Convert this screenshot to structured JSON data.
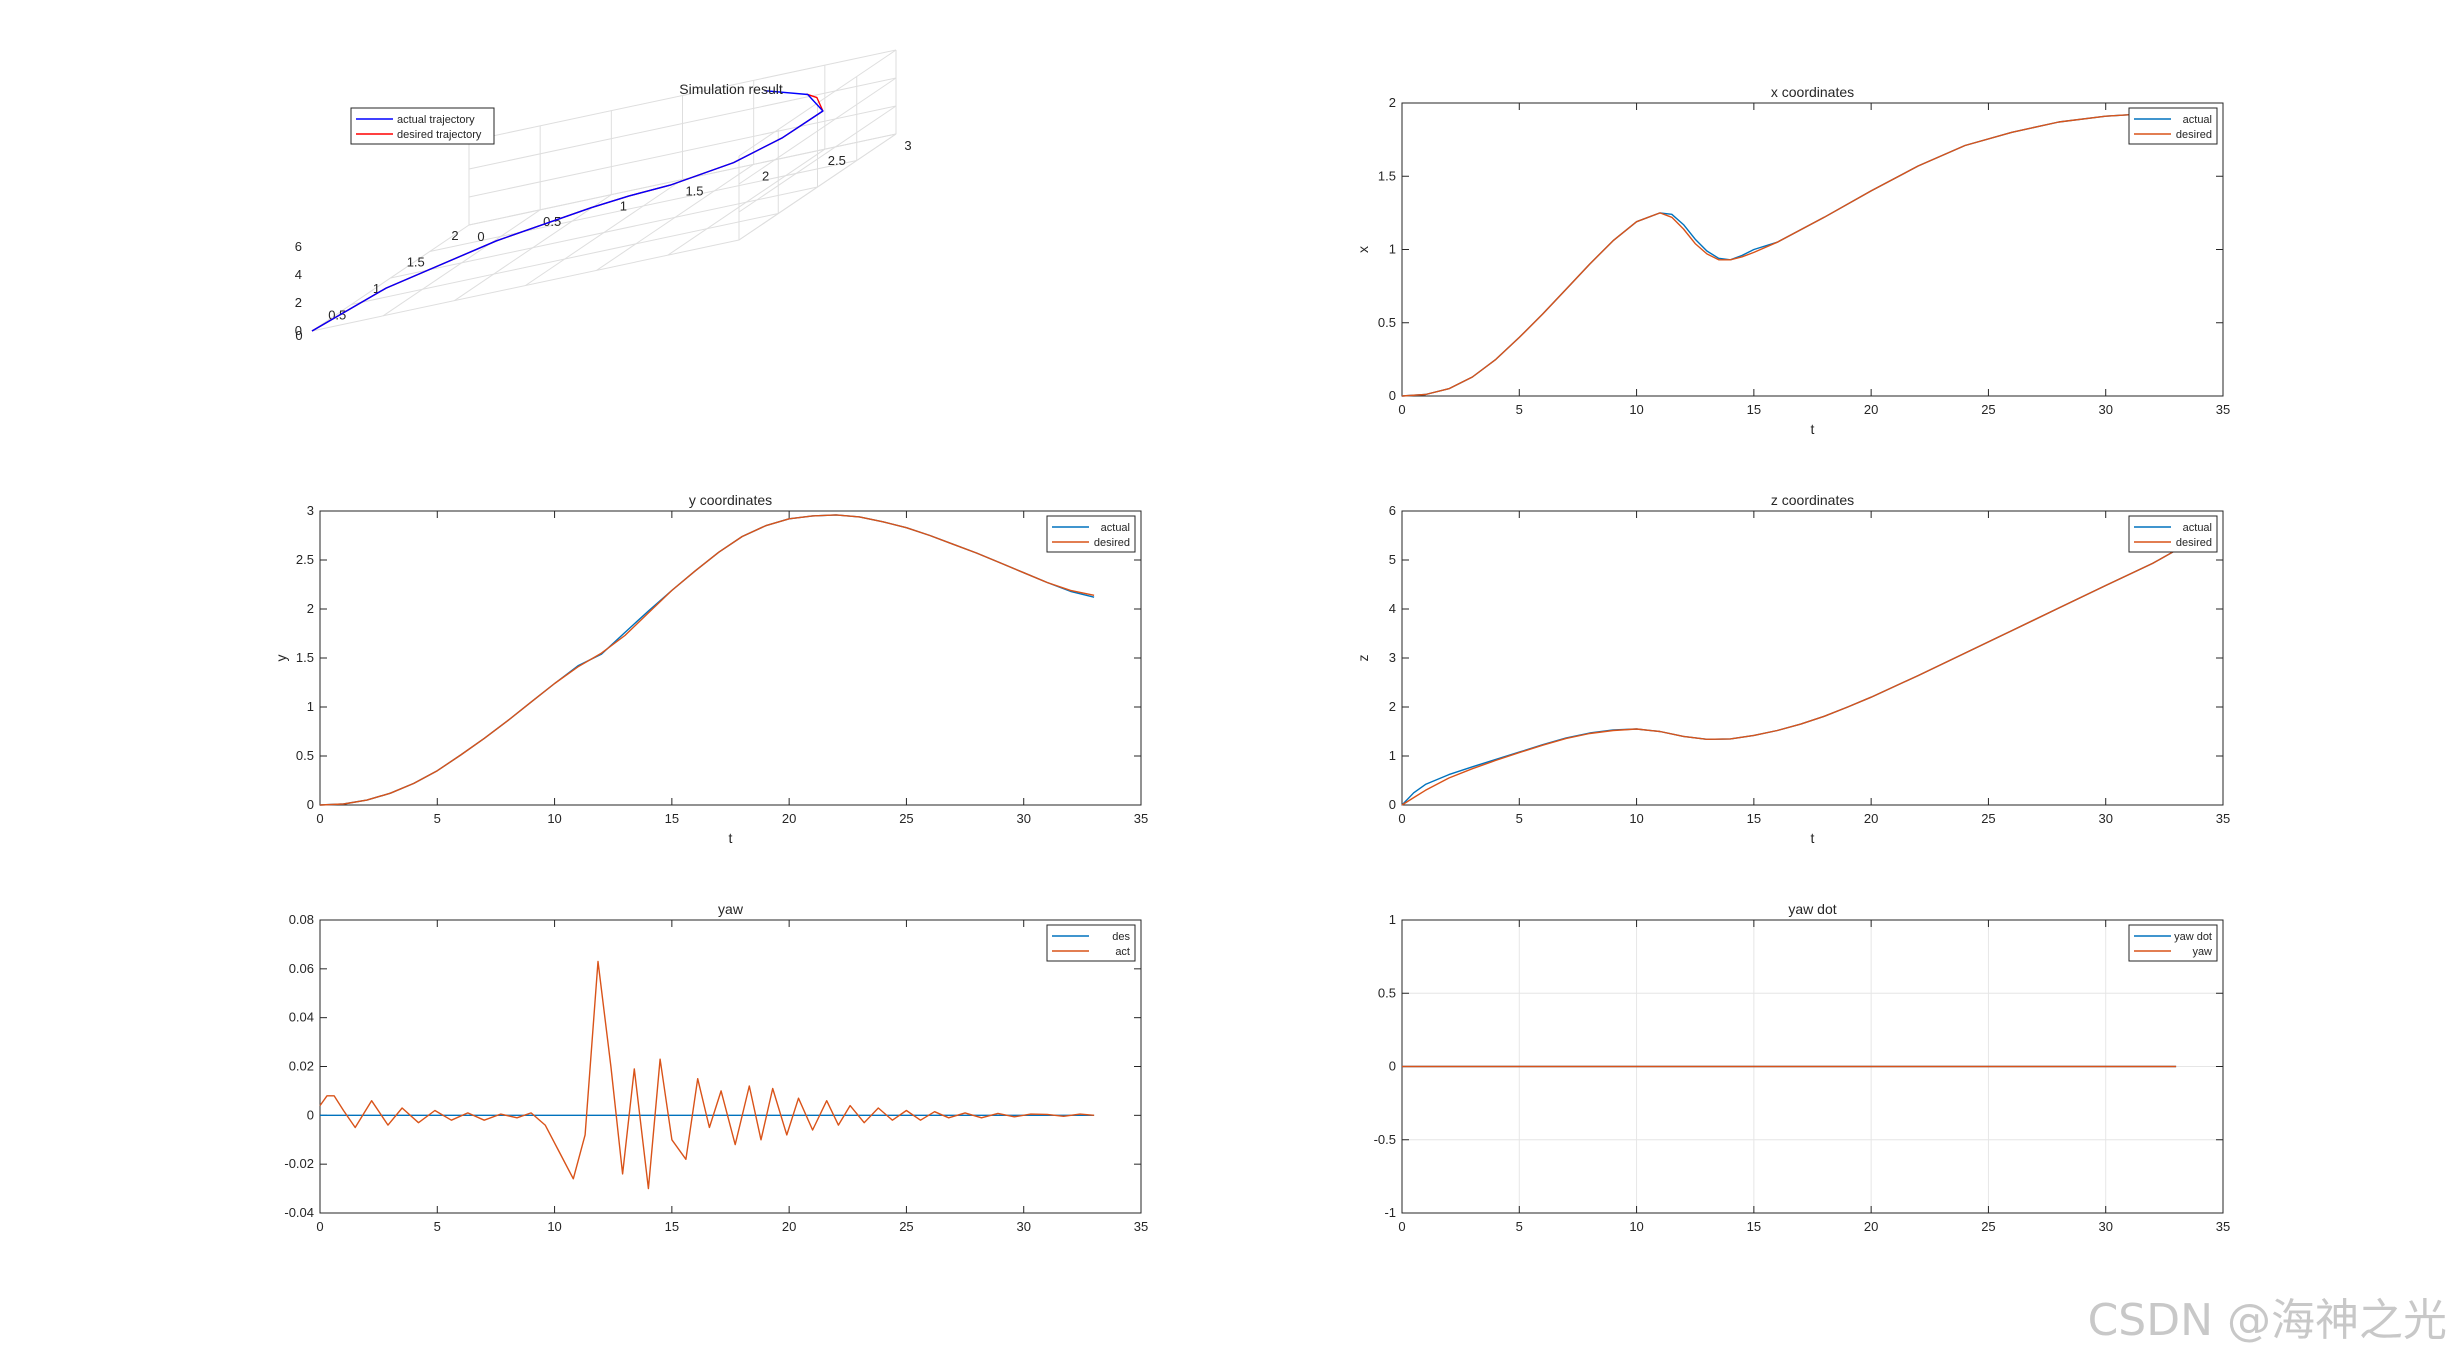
{
  "figure": {
    "watermark": "CSDN @海神之光"
  },
  "chart_data": [
    {
      "id": "sim3d",
      "type": "line3d",
      "title": "Simulation result",
      "xlim": [
        0,
        2
      ],
      "ylim": [
        0,
        3
      ],
      "zlim": [
        0,
        6
      ],
      "xticks": [
        0.5,
        1,
        1.5,
        2
      ],
      "xtick_labels": [
        "0.5",
        "1",
        "1.5",
        "2"
      ],
      "yticks": [
        0,
        0.5,
        1,
        1.5,
        2,
        2.5,
        3
      ],
      "ytick_labels": [
        "0",
        "0.5",
        "1",
        "1.5",
        "2",
        "2.5",
        "3"
      ],
      "zticks": [
        0,
        2,
        4,
        6
      ],
      "ztick_labels": [
        "0",
        "2",
        "4",
        "6"
      ],
      "origin_x_label": "0",
      "legend": {
        "location": "top-left",
        "entries": [
          "actual trajectory",
          "desired trajectory"
        ]
      },
      "series": [
        {
          "name": "actual trajectory",
          "color": "#0000ff",
          "points": [
            [
              0,
              0,
              0
            ],
            [
              0.4,
              0.3,
              0.9
            ],
            [
              0.9,
              0.8,
              1.3
            ],
            [
              1.2,
              1.3,
              1.45
            ],
            [
              1.32,
              1.5,
              1.4
            ],
            [
              1.3,
              1.8,
              1.6
            ],
            [
              1.2,
              2.3,
              2.5
            ],
            [
              1.1,
              2.7,
              3.8
            ],
            [
              1.25,
              2.9,
              4.7
            ],
            [
              1.6,
              2.6,
              5.2
            ],
            [
              1.92,
              2.12,
              5.3
            ]
          ]
        },
        {
          "name": "desired trajectory",
          "color": "#ff0000",
          "points": [
            [
              0,
              0,
              0
            ],
            [
              0.4,
              0.3,
              0.9
            ],
            [
              0.9,
              0.8,
              1.3
            ],
            [
              1.2,
              1.3,
              1.45
            ],
            [
              1.32,
              1.5,
              1.4
            ],
            [
              1.3,
              1.8,
              1.6
            ],
            [
              1.2,
              2.3,
              2.5
            ],
            [
              1.1,
              2.7,
              3.8
            ],
            [
              1.25,
              2.9,
              4.7
            ],
            [
              1.5,
              2.72,
              5.1
            ],
            [
              1.62,
              2.58,
              5.2
            ]
          ]
        }
      ]
    },
    {
      "id": "xcoord",
      "type": "line",
      "title": "x coordinates",
      "xlabel": "t",
      "ylabel": "x",
      "xlim": [
        0,
        35
      ],
      "ylim": [
        0,
        2
      ],
      "xticks": [
        0,
        5,
        10,
        15,
        20,
        25,
        30,
        35
      ],
      "xtick_labels": [
        "0",
        "5",
        "10",
        "15",
        "20",
        "25",
        "30",
        "35"
      ],
      "yticks": [
        0,
        0.5,
        1,
        1.5,
        2
      ],
      "ytick_labels": [
        "0",
        "0.5",
        "1",
        "1.5",
        "2"
      ],
      "grid": false,
      "legend": {
        "location": "top-right",
        "entries": [
          "actual",
          "desired"
        ]
      },
      "series": [
        {
          "name": "actual",
          "color": "#0072bd",
          "x": [
            0,
            1,
            2,
            3,
            4,
            5,
            6,
            7,
            8,
            9,
            10,
            11,
            11.5,
            12,
            12.5,
            13,
            13.5,
            14,
            14.5,
            15,
            16,
            18,
            20,
            22,
            24,
            26,
            28,
            30,
            32,
            33
          ],
          "y": [
            0,
            0.01,
            0.05,
            0.13,
            0.25,
            0.4,
            0.56,
            0.73,
            0.9,
            1.06,
            1.19,
            1.25,
            1.24,
            1.17,
            1.07,
            0.99,
            0.94,
            0.93,
            0.96,
            1.0,
            1.05,
            1.22,
            1.4,
            1.57,
            1.71,
            1.8,
            1.87,
            1.91,
            1.93,
            1.93
          ]
        },
        {
          "name": "desired",
          "color": "#d95319",
          "x": [
            0,
            1,
            2,
            3,
            4,
            5,
            6,
            7,
            8,
            9,
            10,
            11,
            11.5,
            12,
            12.5,
            13,
            13.5,
            14,
            14.5,
            15,
            16,
            18,
            20,
            22,
            24,
            26,
            28,
            30,
            32,
            33
          ],
          "y": [
            0,
            0.01,
            0.05,
            0.13,
            0.25,
            0.4,
            0.56,
            0.73,
            0.9,
            1.06,
            1.19,
            1.25,
            1.22,
            1.14,
            1.04,
            0.97,
            0.93,
            0.93,
            0.95,
            0.98,
            1.05,
            1.22,
            1.4,
            1.57,
            1.71,
            1.8,
            1.87,
            1.91,
            1.93,
            1.93
          ]
        }
      ]
    },
    {
      "id": "ycoord",
      "type": "line",
      "title": "y coordinates",
      "xlabel": "t",
      "ylabel": "y",
      "xlim": [
        0,
        35
      ],
      "ylim": [
        0,
        3
      ],
      "xticks": [
        0,
        5,
        10,
        15,
        20,
        25,
        30,
        35
      ],
      "xtick_labels": [
        "0",
        "5",
        "10",
        "15",
        "20",
        "25",
        "30",
        "35"
      ],
      "yticks": [
        0,
        0.5,
        1,
        1.5,
        2,
        2.5,
        3
      ],
      "ytick_labels": [
        "0",
        "0.5",
        "1",
        "1.5",
        "2",
        "2.5",
        "3"
      ],
      "grid": false,
      "legend": {
        "location": "top-right",
        "entries": [
          "actual",
          "desired"
        ]
      },
      "series": [
        {
          "name": "actual",
          "color": "#0072bd",
          "x": [
            0,
            1,
            2,
            3,
            4,
            5,
            6,
            7,
            8,
            9,
            10,
            11,
            12,
            13,
            14,
            15,
            16,
            17,
            18,
            19,
            20,
            21,
            22,
            23,
            24,
            25,
            26,
            27,
            28,
            29,
            30,
            31,
            32,
            33
          ],
          "y": [
            0,
            0.01,
            0.05,
            0.12,
            0.22,
            0.35,
            0.51,
            0.68,
            0.86,
            1.05,
            1.24,
            1.42,
            1.54,
            1.76,
            1.98,
            2.19,
            2.39,
            2.58,
            2.74,
            2.85,
            2.92,
            2.95,
            2.96,
            2.94,
            2.89,
            2.83,
            2.75,
            2.66,
            2.57,
            2.47,
            2.37,
            2.27,
            2.18,
            2.12
          ]
        },
        {
          "name": "desired",
          "color": "#d95319",
          "x": [
            0,
            1,
            2,
            3,
            4,
            5,
            6,
            7,
            8,
            9,
            10,
            11,
            12,
            13,
            14,
            15,
            16,
            17,
            18,
            19,
            20,
            21,
            22,
            23,
            24,
            25,
            26,
            27,
            28,
            29,
            30,
            31,
            32,
            33
          ],
          "y": [
            0,
            0.01,
            0.05,
            0.12,
            0.22,
            0.35,
            0.51,
            0.68,
            0.86,
            1.05,
            1.24,
            1.41,
            1.55,
            1.73,
            1.96,
            2.19,
            2.39,
            2.58,
            2.74,
            2.85,
            2.92,
            2.95,
            2.96,
            2.94,
            2.89,
            2.83,
            2.75,
            2.66,
            2.57,
            2.47,
            2.37,
            2.27,
            2.19,
            2.14
          ]
        }
      ]
    },
    {
      "id": "zcoord",
      "type": "line",
      "title": "z coordinates",
      "xlabel": "t",
      "ylabel": "z",
      "xlim": [
        0,
        35
      ],
      "ylim": [
        0,
        6
      ],
      "xticks": [
        0,
        5,
        10,
        15,
        20,
        25,
        30,
        35
      ],
      "xtick_labels": [
        "0",
        "5",
        "10",
        "15",
        "20",
        "25",
        "30",
        "35"
      ],
      "yticks": [
        0,
        1,
        2,
        3,
        4,
        5,
        6
      ],
      "ytick_labels": [
        "0",
        "1",
        "2",
        "3",
        "4",
        "5",
        "6"
      ],
      "grid": false,
      "legend": {
        "location": "top-right",
        "entries": [
          "actual",
          "desired"
        ]
      },
      "series": [
        {
          "name": "actual",
          "color": "#0072bd",
          "x": [
            0,
            0.5,
            1,
            2,
            3,
            4,
            5,
            6,
            7,
            8,
            9,
            10,
            11,
            12,
            13,
            14,
            15,
            16,
            17,
            18,
            19,
            20,
            22,
            24,
            26,
            28,
            30,
            32,
            33
          ],
          "y": [
            0,
            0.25,
            0.42,
            0.62,
            0.78,
            0.93,
            1.08,
            1.23,
            1.37,
            1.47,
            1.53,
            1.55,
            1.5,
            1.4,
            1.34,
            1.35,
            1.42,
            1.52,
            1.65,
            1.81,
            2.0,
            2.2,
            2.64,
            3.1,
            3.56,
            4.02,
            4.48,
            4.93,
            5.2
          ]
        },
        {
          "name": "desired",
          "color": "#d95319",
          "x": [
            0,
            0.5,
            1,
            2,
            3,
            4,
            5,
            6,
            7,
            8,
            9,
            10,
            11,
            12,
            13,
            14,
            15,
            16,
            17,
            18,
            19,
            20,
            22,
            24,
            26,
            28,
            30,
            32,
            33
          ],
          "y": [
            0,
            0.15,
            0.3,
            0.55,
            0.74,
            0.91,
            1.07,
            1.22,
            1.36,
            1.46,
            1.52,
            1.55,
            1.5,
            1.4,
            1.34,
            1.35,
            1.42,
            1.52,
            1.65,
            1.81,
            2.0,
            2.2,
            2.64,
            3.1,
            3.56,
            4.02,
            4.48,
            4.93,
            5.2
          ]
        }
      ]
    },
    {
      "id": "yaw",
      "type": "line",
      "title": "yaw",
      "xlabel": "",
      "ylabel": "",
      "xlim": [
        0,
        35
      ],
      "ylim": [
        -0.04,
        0.08
      ],
      "xticks": [
        0,
        5,
        10,
        15,
        20,
        25,
        30,
        35
      ],
      "xtick_labels": [
        "0",
        "5",
        "10",
        "15",
        "20",
        "25",
        "30",
        "35"
      ],
      "yticks": [
        -0.04,
        -0.02,
        0,
        0.02,
        0.04,
        0.06,
        0.08
      ],
      "ytick_labels": [
        "-0.04",
        "-0.02",
        "0",
        "0.02",
        "0.04",
        "0.06",
        "0.08"
      ],
      "grid": false,
      "legend": {
        "location": "top-right",
        "entries": [
          "des",
          "act"
        ]
      },
      "series": [
        {
          "name": "des",
          "color": "#0072bd",
          "x": [
            0,
            33
          ],
          "y": [
            0,
            0
          ]
        },
        {
          "name": "act",
          "color": "#d95319",
          "x": [
            0,
            0.3,
            0.6,
            1.0,
            1.5,
            2.2,
            2.9,
            3.5,
            4.2,
            4.9,
            5.6,
            6.3,
            7.0,
            7.7,
            8.4,
            9.0,
            9.6,
            10.2,
            10.8,
            11.3,
            11.85,
            12.4,
            12.9,
            13.4,
            14.0,
            14.5,
            15.0,
            15.6,
            16.1,
            16.6,
            17.1,
            17.7,
            18.3,
            18.8,
            19.3,
            19.9,
            20.4,
            21.0,
            21.6,
            22.1,
            22.6,
            23.2,
            23.8,
            24.4,
            25.0,
            25.6,
            26.2,
            26.8,
            27.5,
            28.2,
            28.9,
            29.6,
            30.3,
            31.0,
            31.7,
            32.4,
            33.0
          ],
          "y": [
            0.004,
            0.008,
            0.008,
            0.002,
            -0.005,
            0.006,
            -0.004,
            0.003,
            -0.003,
            0.002,
            -0.002,
            0.001,
            -0.002,
            0.0005,
            -0.001,
            0.001,
            -0.004,
            -0.015,
            -0.026,
            -0.008,
            0.063,
            0.02,
            -0.024,
            0.019,
            -0.03,
            0.023,
            -0.01,
            -0.018,
            0.015,
            -0.005,
            0.01,
            -0.012,
            0.012,
            -0.01,
            0.011,
            -0.008,
            0.007,
            -0.006,
            0.006,
            -0.004,
            0.004,
            -0.003,
            0.003,
            -0.002,
            0.002,
            -0.002,
            0.0015,
            -0.001,
            0.001,
            -0.001,
            0.0008,
            -0.0006,
            0.0005,
            0.0004,
            -0.0004,
            0.0005,
            0
          ]
        }
      ]
    },
    {
      "id": "yawdot",
      "type": "line",
      "title": "yaw dot",
      "xlabel": "",
      "ylabel": "",
      "xlim": [
        0,
        35
      ],
      "ylim": [
        -1,
        1
      ],
      "xticks": [
        0,
        5,
        10,
        15,
        20,
        25,
        30,
        35
      ],
      "xtick_labels": [
        "0",
        "5",
        "10",
        "15",
        "20",
        "25",
        "30",
        "35"
      ],
      "yticks": [
        -1,
        -0.5,
        0,
        0.5,
        1
      ],
      "ytick_labels": [
        "-1",
        "-0.5",
        "0",
        "0.5",
        "1"
      ],
      "grid": true,
      "legend": {
        "location": "top-right",
        "entries": [
          "yaw dot",
          "yaw"
        ]
      },
      "series": [
        {
          "name": "yaw dot",
          "color": "#0072bd",
          "x": [
            0,
            33
          ],
          "y": [
            0,
            0
          ]
        },
        {
          "name": "yaw",
          "color": "#d95319",
          "x": [
            0,
            33
          ],
          "y": [
            0,
            0
          ]
        }
      ]
    }
  ]
}
